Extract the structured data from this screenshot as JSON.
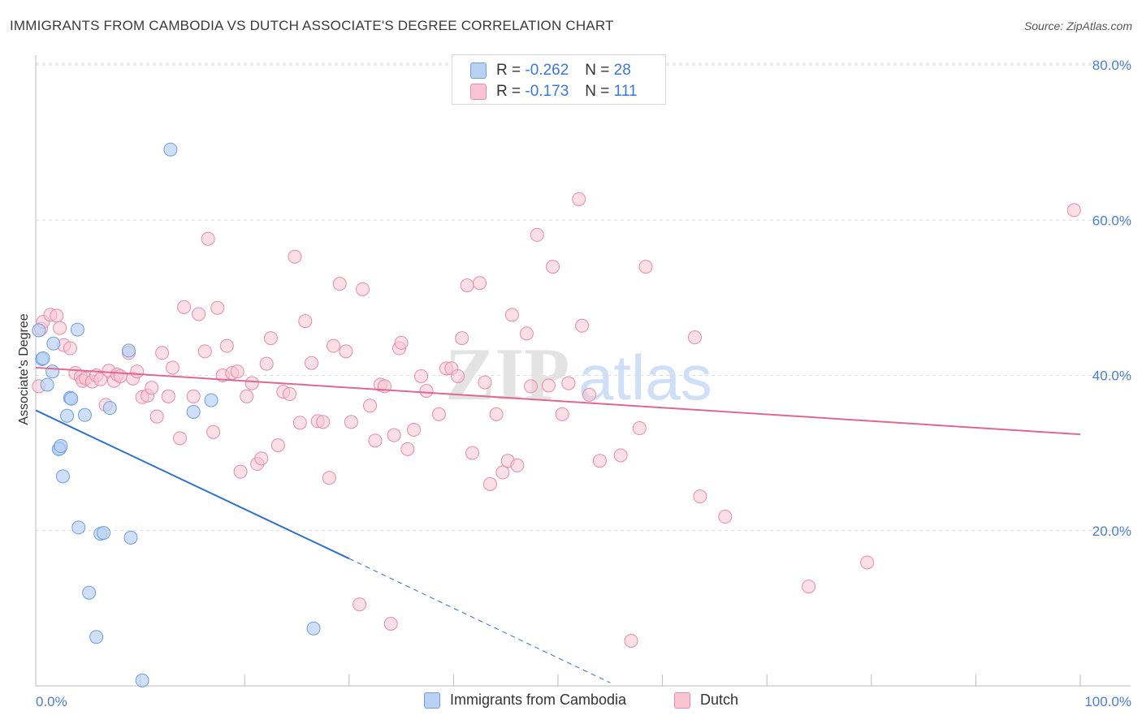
{
  "title": "IMMIGRANTS FROM CAMBODIA VS DUTCH ASSOCIATE'S DEGREE CORRELATION CHART",
  "source": "Source: ZipAtlas.com",
  "watermark": {
    "zip": "ZIP",
    "atlas": "atlas"
  },
  "legend": {
    "series1": {
      "r_label": "R =",
      "r_value": "-0.262",
      "n_label": "N =",
      "n_value": "28"
    },
    "series2": {
      "r_label": "R =",
      "r_value": "-0.173",
      "n_label": "N =",
      "n_value": "111"
    }
  },
  "colors": {
    "blue_fill": "#b9d1f3",
    "blue_stroke": "#6f9fe0",
    "blue_line": "#2b6fd1",
    "pink_fill": "#f8c4d4",
    "pink_stroke": "#e88aa8",
    "pink_line": "#e06890",
    "grid": "#dcdcdc",
    "tick_text": "#4a7fd0"
  },
  "chart_data": {
    "type": "scatter",
    "title": "IMMIGRANTS FROM CAMBODIA VS DUTCH ASSOCIATE'S DEGREE CORRELATION CHART",
    "xlabel": "",
    "ylabel": "Associate's Degree",
    "xlim": [
      0,
      100
    ],
    "ylim": [
      0,
      80
    ],
    "x_tick_labels": [
      "0.0%",
      "100.0%"
    ],
    "y_ticks": [
      20,
      40,
      60,
      80
    ],
    "y_tick_labels": [
      "20.0%",
      "40.0%",
      "60.0%",
      "80.0%"
    ],
    "grid": "horizontal dashed",
    "legend_position": "top-center and bottom",
    "series": [
      {
        "name": "Immigrants from Cambodia",
        "color": "#6f9fe0",
        "points": [
          [
            0.3,
            45.8
          ],
          [
            0.6,
            42.1
          ],
          [
            0.7,
            42.2
          ],
          [
            1.1,
            38.8
          ],
          [
            1.6,
            40.5
          ],
          [
            1.7,
            44.1
          ],
          [
            2.3,
            30.6
          ],
          [
            2.2,
            30.5
          ],
          [
            2.4,
            30.9
          ],
          [
            2.6,
            27.0
          ],
          [
            3.0,
            34.8
          ],
          [
            3.3,
            37.1
          ],
          [
            3.4,
            37.0
          ],
          [
            4.0,
            45.9
          ],
          [
            4.1,
            20.4
          ],
          [
            4.7,
            34.9
          ],
          [
            5.1,
            12.0
          ],
          [
            5.8,
            6.3
          ],
          [
            6.2,
            19.6
          ],
          [
            6.5,
            19.7
          ],
          [
            7.1,
            35.8
          ],
          [
            8.9,
            43.2
          ],
          [
            9.1,
            19.1
          ],
          [
            10.2,
            0.7
          ],
          [
            12.9,
            69.1
          ],
          [
            15.1,
            35.3
          ],
          [
            16.8,
            36.8
          ],
          [
            26.6,
            7.4
          ]
        ],
        "trend": {
          "x": [
            0,
            30
          ],
          "y": [
            35.5,
            16.4
          ],
          "dashed_extension": {
            "x": [
              30,
              55
            ],
            "y": [
              16.4,
              0.4
            ]
          }
        }
      },
      {
        "name": "Dutch",
        "color": "#e88aa8",
        "points": [
          [
            0.3,
            38.6
          ],
          [
            0.5,
            46.0
          ],
          [
            0.7,
            46.9
          ],
          [
            1.4,
            47.8
          ],
          [
            2.0,
            47.7
          ],
          [
            2.3,
            46.1
          ],
          [
            2.7,
            43.9
          ],
          [
            3.3,
            43.5
          ],
          [
            3.8,
            40.3
          ],
          [
            4.3,
            39.8
          ],
          [
            4.5,
            39.3
          ],
          [
            4.8,
            39.6
          ],
          [
            5.4,
            39.2
          ],
          [
            5.8,
            40.0
          ],
          [
            6.2,
            39.5
          ],
          [
            6.7,
            36.2
          ],
          [
            7.0,
            40.6
          ],
          [
            7.5,
            39.3
          ],
          [
            7.8,
            40.1
          ],
          [
            8.1,
            39.9
          ],
          [
            8.9,
            42.9
          ],
          [
            9.3,
            39.6
          ],
          [
            9.7,
            40.5
          ],
          [
            10.2,
            37.2
          ],
          [
            10.7,
            37.4
          ],
          [
            11.1,
            38.4
          ],
          [
            11.6,
            34.7
          ],
          [
            12.1,
            42.9
          ],
          [
            12.7,
            37.3
          ],
          [
            13.1,
            41.0
          ],
          [
            13.8,
            31.9
          ],
          [
            14.2,
            48.8
          ],
          [
            15.1,
            37.3
          ],
          [
            15.6,
            47.9
          ],
          [
            16.2,
            43.1
          ],
          [
            16.5,
            57.6
          ],
          [
            17.0,
            32.7
          ],
          [
            17.4,
            48.7
          ],
          [
            17.9,
            40.0
          ],
          [
            18.3,
            43.8
          ],
          [
            18.8,
            40.3
          ],
          [
            19.3,
            40.5
          ],
          [
            19.6,
            27.6
          ],
          [
            20.2,
            37.3
          ],
          [
            20.7,
            39.0
          ],
          [
            21.2,
            28.6
          ],
          [
            21.6,
            29.3
          ],
          [
            22.1,
            41.5
          ],
          [
            22.5,
            44.8
          ],
          [
            23.2,
            31.0
          ],
          [
            23.7,
            37.9
          ],
          [
            24.3,
            37.6
          ],
          [
            24.8,
            55.3
          ],
          [
            25.3,
            33.9
          ],
          [
            25.8,
            47.0
          ],
          [
            26.4,
            41.6
          ],
          [
            27.0,
            34.1
          ],
          [
            27.5,
            34.0
          ],
          [
            28.1,
            26.8
          ],
          [
            28.5,
            43.8
          ],
          [
            29.1,
            51.8
          ],
          [
            29.7,
            43.1
          ],
          [
            30.2,
            34.0
          ],
          [
            31.3,
            51.1
          ],
          [
            32.0,
            36.1
          ],
          [
            32.5,
            31.6
          ],
          [
            33.0,
            38.8
          ],
          [
            33.4,
            38.6
          ],
          [
            34.3,
            32.3
          ],
          [
            34.8,
            43.5
          ],
          [
            35.0,
            44.2
          ],
          [
            35.6,
            30.5
          ],
          [
            36.2,
            33.0
          ],
          [
            36.9,
            39.9
          ],
          [
            37.4,
            38.0
          ],
          [
            38.6,
            35.0
          ],
          [
            39.3,
            40.9
          ],
          [
            39.8,
            40.9
          ],
          [
            40.4,
            39.9
          ],
          [
            40.8,
            44.8
          ],
          [
            41.3,
            51.6
          ],
          [
            41.8,
            30.0
          ],
          [
            42.5,
            51.9
          ],
          [
            43.0,
            39.1
          ],
          [
            43.5,
            26.0
          ],
          [
            44.1,
            35.0
          ],
          [
            44.7,
            27.5
          ],
          [
            45.2,
            29.0
          ],
          [
            45.6,
            47.8
          ],
          [
            46.1,
            28.4
          ],
          [
            47.0,
            45.4
          ],
          [
            47.4,
            38.6
          ],
          [
            48.0,
            58.1
          ],
          [
            49.1,
            38.7
          ],
          [
            49.5,
            54.0
          ],
          [
            50.4,
            35.0
          ],
          [
            51.0,
            39.0
          ],
          [
            52.0,
            62.7
          ],
          [
            52.3,
            46.4
          ],
          [
            53.0,
            37.5
          ],
          [
            54.0,
            29.0
          ],
          [
            56.0,
            29.7
          ],
          [
            57.8,
            33.2
          ],
          [
            58.4,
            54.0
          ],
          [
            63.1,
            44.9
          ],
          [
            63.6,
            24.4
          ],
          [
            66.0,
            21.8
          ],
          [
            74.0,
            12.8
          ],
          [
            79.6,
            15.9
          ],
          [
            31.0,
            10.5
          ],
          [
            34.0,
            8.0
          ],
          [
            57.0,
            5.8
          ],
          [
            99.4,
            61.3
          ]
        ],
        "trend": {
          "x": [
            0,
            100
          ],
          "y": [
            41.0,
            32.4
          ]
        }
      }
    ]
  },
  "bottom_legend": [
    "Immigrants from Cambodia",
    "Dutch"
  ]
}
